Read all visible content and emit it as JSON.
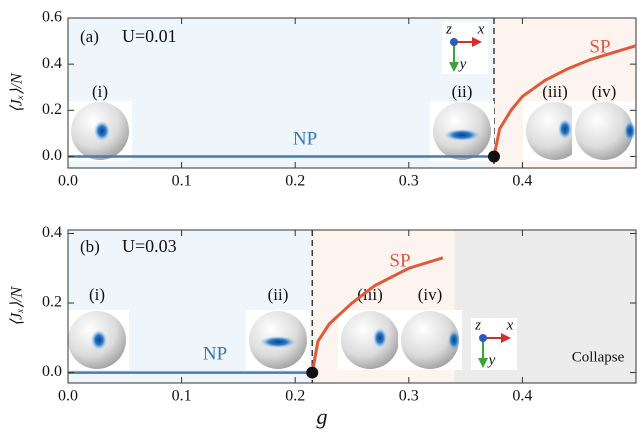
{
  "chart_data": [
    {
      "type": "line",
      "panel_label": "(a)",
      "param_label": "U=0.01",
      "ylabel": "⟨Jₓ⟩/N",
      "xlim": [
        0,
        0.5
      ],
      "ylim": [
        -0.05,
        0.6
      ],
      "xticks": [
        {
          "value": 0,
          "label": "0.0"
        },
        0.1,
        0.2,
        0.3,
        0.4
      ],
      "yticks": [
        {
          "value": 0,
          "label": "0.0"
        },
        0.2,
        0.4,
        0.6
      ],
      "regions": [
        {
          "name": "NP",
          "color": "#eef5fb",
          "text_color": "#3a78b5",
          "range": [
            0,
            0.375
          ]
        },
        {
          "name": "SP",
          "color": "#fdf4f0",
          "text_color": "#e0563a",
          "range": [
            0.375,
            0.5
          ]
        }
      ],
      "critical_g": 0.375,
      "series": [
        {
          "color": "#4a7ab5",
          "x": [
            0,
            0.375
          ],
          "values": [
            0,
            0
          ]
        },
        {
          "color": "#e05a3a",
          "x": [
            0.375,
            0.38,
            0.39,
            0.4,
            0.42,
            0.44,
            0.46,
            0.48,
            0.5
          ],
          "values": [
            0,
            0.12,
            0.2,
            0.26,
            0.33,
            0.38,
            0.42,
            0.45,
            0.48
          ]
        }
      ],
      "insets": [
        "(i)",
        "(ii)",
        "(iii)",
        "(iv)"
      ],
      "axis_inset": [
        "z",
        "x",
        "y"
      ]
    },
    {
      "type": "line",
      "panel_label": "(b)",
      "param_label": "U=0.03",
      "ylabel": "⟨Jₓ⟩/N",
      "xlabel": "g",
      "xlim": [
        0,
        0.5
      ],
      "ylim": [
        -0.03,
        0.41
      ],
      "xticks": [
        {
          "value": 0,
          "label": "0.0"
        },
        0.1,
        0.2,
        0.3,
        0.4
      ],
      "yticks": [
        {
          "value": 0,
          "label": "0.0"
        },
        0.2,
        0.4
      ],
      "regions": [
        {
          "name": "NP",
          "color": "#eef5fb",
          "text_color": "#3a78b5",
          "range": [
            0,
            0.215
          ]
        },
        {
          "name": "SP",
          "color": "#fdf4f0",
          "text_color": "#e0563a",
          "range": [
            0.215,
            0.34
          ]
        },
        {
          "name": "Collapse",
          "color": "#ececec",
          "text_color": "#111111",
          "range": [
            0.34,
            0.5
          ]
        }
      ],
      "critical_g": 0.215,
      "series": [
        {
          "color": "#4a7ab5",
          "x": [
            0,
            0.215
          ],
          "values": [
            0,
            0
          ]
        },
        {
          "color": "#e05a3a",
          "x": [
            0.215,
            0.22,
            0.23,
            0.25,
            0.27,
            0.3,
            0.33
          ],
          "values": [
            0,
            0.09,
            0.14,
            0.2,
            0.25,
            0.3,
            0.33
          ]
        }
      ],
      "insets": [
        "(i)",
        "(ii)",
        "(iii)",
        "(iv)"
      ],
      "axis_inset": [
        "z",
        "x",
        "y"
      ]
    }
  ]
}
